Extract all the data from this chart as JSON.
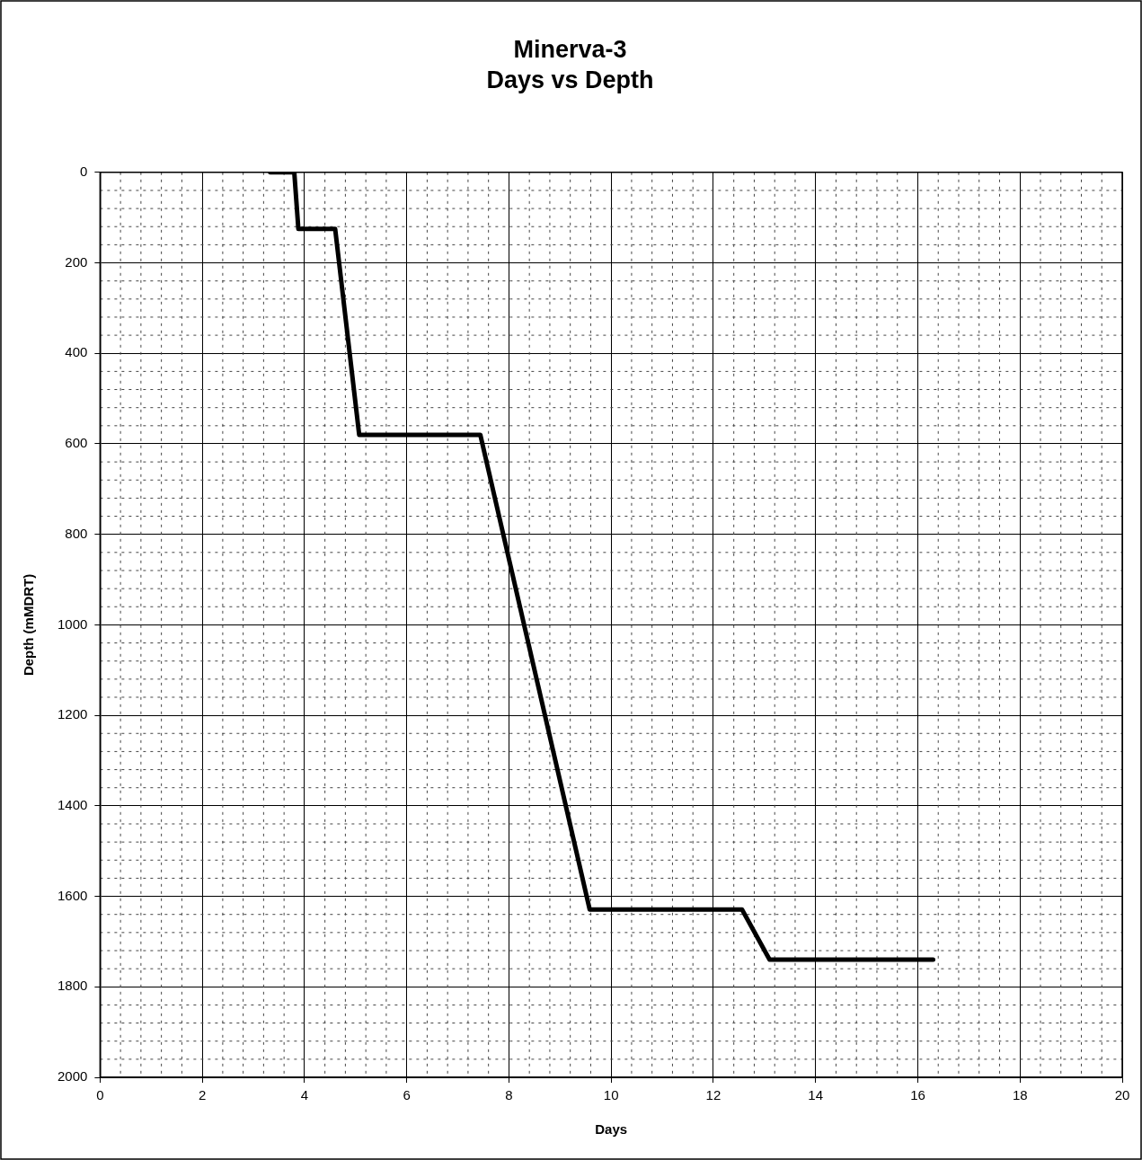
{
  "chart_data": {
    "type": "line",
    "title": "Minerva-3",
    "subtitle": "Days vs Depth",
    "xlabel": "Days",
    "ylabel": "Depth (mMDRT)",
    "x": [
      3.33,
      3.8,
      3.88,
      4.6,
      5.07,
      7.44,
      9.58,
      12.56,
      13.1,
      16.3
    ],
    "series": [
      {
        "color": "#000000",
        "values": [
          0,
          0,
          125,
          125,
          580,
          580,
          1629,
          1629,
          1740,
          1740
        ]
      }
    ],
    "xlim": [
      0,
      20
    ],
    "xticks": [
      0,
      2,
      4,
      6,
      8,
      10,
      12,
      14,
      16,
      18,
      20
    ],
    "ylim": [
      2000,
      0
    ],
    "yticks": [
      0,
      200,
      400,
      600,
      800,
      1000,
      1200,
      1400,
      1600,
      1800,
      2000
    ],
    "grid": true,
    "legend": false,
    "marker": "none",
    "line_style": "solid"
  }
}
